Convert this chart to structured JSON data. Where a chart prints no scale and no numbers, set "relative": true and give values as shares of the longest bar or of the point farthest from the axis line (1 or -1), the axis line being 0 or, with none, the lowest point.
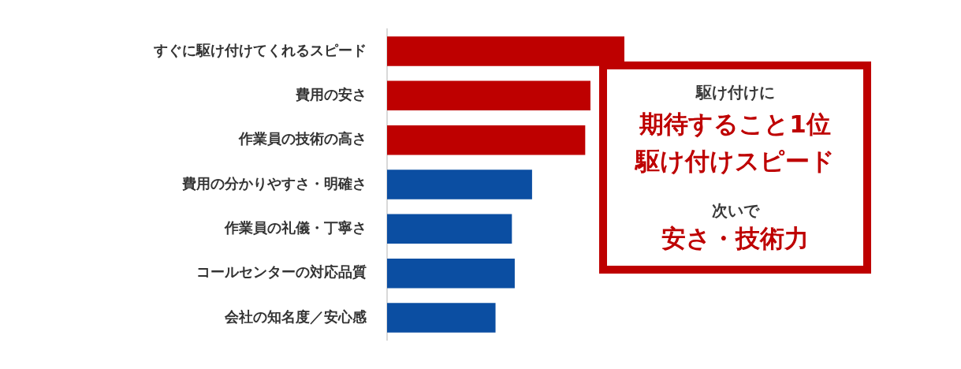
{
  "chart_data": {
    "type": "bar",
    "orientation": "horizontal",
    "relative": true,
    "categories": [
      "すぐに駆け付けてくれるスピード",
      "費用の安さ",
      "作業員の技術の高さ",
      "費用の分かりやすさ・明確さ",
      "作業員の礼儀・丁寧さ",
      "コールセンターの対応品質",
      "会社の知名度／安心感"
    ],
    "values": [
      1,
      0.857,
      0.835,
      0.611,
      0.526,
      0.538,
      0.457
    ],
    "colors": [
      "#be0000",
      "#be0000",
      "#be0000",
      "#0b4ea2",
      "#0b4ea2",
      "#0b4ea2",
      "#0b4ea2"
    ],
    "annotations": [
      "駆け付けに",
      "期待すること1位",
      "駆け付けスピード",
      "次いで",
      "安さ・技術力"
    ]
  }
}
